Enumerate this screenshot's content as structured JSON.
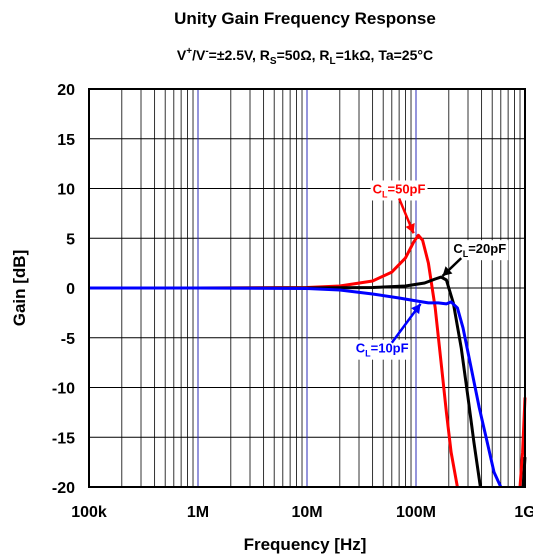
{
  "chart_data": {
    "type": "line",
    "title": "Unity Gain Frequency Response",
    "subtitle": {
      "parts": [
        "V",
        "+",
        "/V",
        "-",
        "=±2.5V, R",
        "S",
        "=50Ω, R",
        "L",
        "=1kΩ, Ta=25°C"
      ]
    },
    "xlabel": "Frequency [Hz]",
    "ylabel": "Gain [dB]",
    "x_scale": "log",
    "xlim": [
      100000,
      1000000000
    ],
    "ylim": [
      -20,
      20
    ],
    "x_ticks": [
      {
        "value": 100000,
        "label": "100k"
      },
      {
        "value": 1000000,
        "label": "1M"
      },
      {
        "value": 10000000,
        "label": "10M"
      },
      {
        "value": 100000000,
        "label": "100M"
      },
      {
        "value": 1000000000,
        "label": "1G"
      }
    ],
    "y_ticks": [
      20,
      15,
      10,
      5,
      0,
      -5,
      -10,
      -15,
      -20
    ],
    "grid": true,
    "series": [
      {
        "name": "CL=50pF",
        "label_parts": [
          "C",
          "L",
          "=50pF"
        ],
        "color": "#ff0000",
        "points": [
          [
            100000,
            0
          ],
          [
            1000000,
            0
          ],
          [
            10000000,
            0.05
          ],
          [
            20000000,
            0.2
          ],
          [
            40000000,
            0.7
          ],
          [
            60000000,
            1.6
          ],
          [
            80000000,
            3.0
          ],
          [
            95000000,
            4.6
          ],
          [
            105000000,
            5.3
          ],
          [
            115000000,
            4.8
          ],
          [
            130000000,
            2.5
          ],
          [
            150000000,
            -2.0
          ],
          [
            170000000,
            -7.5
          ],
          [
            190000000,
            -12.5
          ],
          [
            210000000,
            -16.5
          ],
          [
            240000000,
            -20
          ]
        ]
      },
      {
        "name": "CL=20pF",
        "label_parts": [
          "C",
          "L",
          "=20pF"
        ],
        "color": "#000000",
        "points": [
          [
            100000,
            0
          ],
          [
            1000000,
            0
          ],
          [
            10000000,
            0
          ],
          [
            40000000,
            0.05
          ],
          [
            80000000,
            0.2
          ],
          [
            120000000,
            0.5
          ],
          [
            150000000,
            0.9
          ],
          [
            170000000,
            1.1
          ],
          [
            190000000,
            0.8
          ],
          [
            220000000,
            -1.5
          ],
          [
            260000000,
            -6.0
          ],
          [
            300000000,
            -11.0
          ],
          [
            340000000,
            -15.5
          ],
          [
            390000000,
            -20
          ]
        ]
      },
      {
        "name": "CL=10pF",
        "label_parts": [
          "C",
          "L",
          "=10pF"
        ],
        "color": "#0000ff",
        "points": [
          [
            100000,
            0
          ],
          [
            1000000,
            0
          ],
          [
            10000000,
            -0.05
          ],
          [
            20000000,
            -0.2
          ],
          [
            40000000,
            -0.6
          ],
          [
            70000000,
            -1.0
          ],
          [
            100000000,
            -1.3
          ],
          [
            130000000,
            -1.5
          ],
          [
            160000000,
            -1.5
          ],
          [
            190000000,
            -1.6
          ],
          [
            210000000,
            -1.4
          ],
          [
            240000000,
            -2.0
          ],
          [
            270000000,
            -4.0
          ],
          [
            320000000,
            -8.0
          ],
          [
            380000000,
            -12.0
          ],
          [
            450000000,
            -15.5
          ],
          [
            520000000,
            -18.5
          ],
          [
            600000000,
            -20
          ]
        ]
      },
      {
        "name": "CL=50pF high-frequency",
        "color": "#ff0000",
        "points": [
          [
            900000000,
            -20
          ],
          [
            950000000,
            -16.5
          ],
          [
            1000000000,
            -11.0
          ]
        ]
      },
      {
        "name": "CL=20pF high-frequency",
        "color": "#000000",
        "points": [
          [
            960000000,
            -20
          ],
          [
            1000000000,
            -17.0
          ]
        ]
      }
    ],
    "annotations": [
      {
        "series": "CL=50pF",
        "parts": [
          "C",
          "L",
          "=50pF"
        ],
        "color": "#ff0000",
        "text_at": [
          40000000,
          9.5
        ],
        "arrow_from": [
          70000000,
          9.0
        ],
        "arrow_to": [
          95000000,
          5.5
        ]
      },
      {
        "series": "CL=20pF",
        "parts": [
          "C",
          "L",
          "=20pF"
        ],
        "color": "#000000",
        "text_at": [
          220000000,
          3.5
        ],
        "arrow_from": [
          260000000,
          3.0
        ],
        "arrow_to": [
          175000000,
          1.2
        ]
      },
      {
        "series": "CL=10pF",
        "parts": [
          "C",
          "L",
          "=10pF"
        ],
        "color": "#0000ff",
        "text_at": [
          28000000,
          -6.5
        ],
        "arrow_from": [
          60000000,
          -5.5
        ],
        "arrow_to": [
          110000000,
          -1.6
        ]
      }
    ]
  }
}
